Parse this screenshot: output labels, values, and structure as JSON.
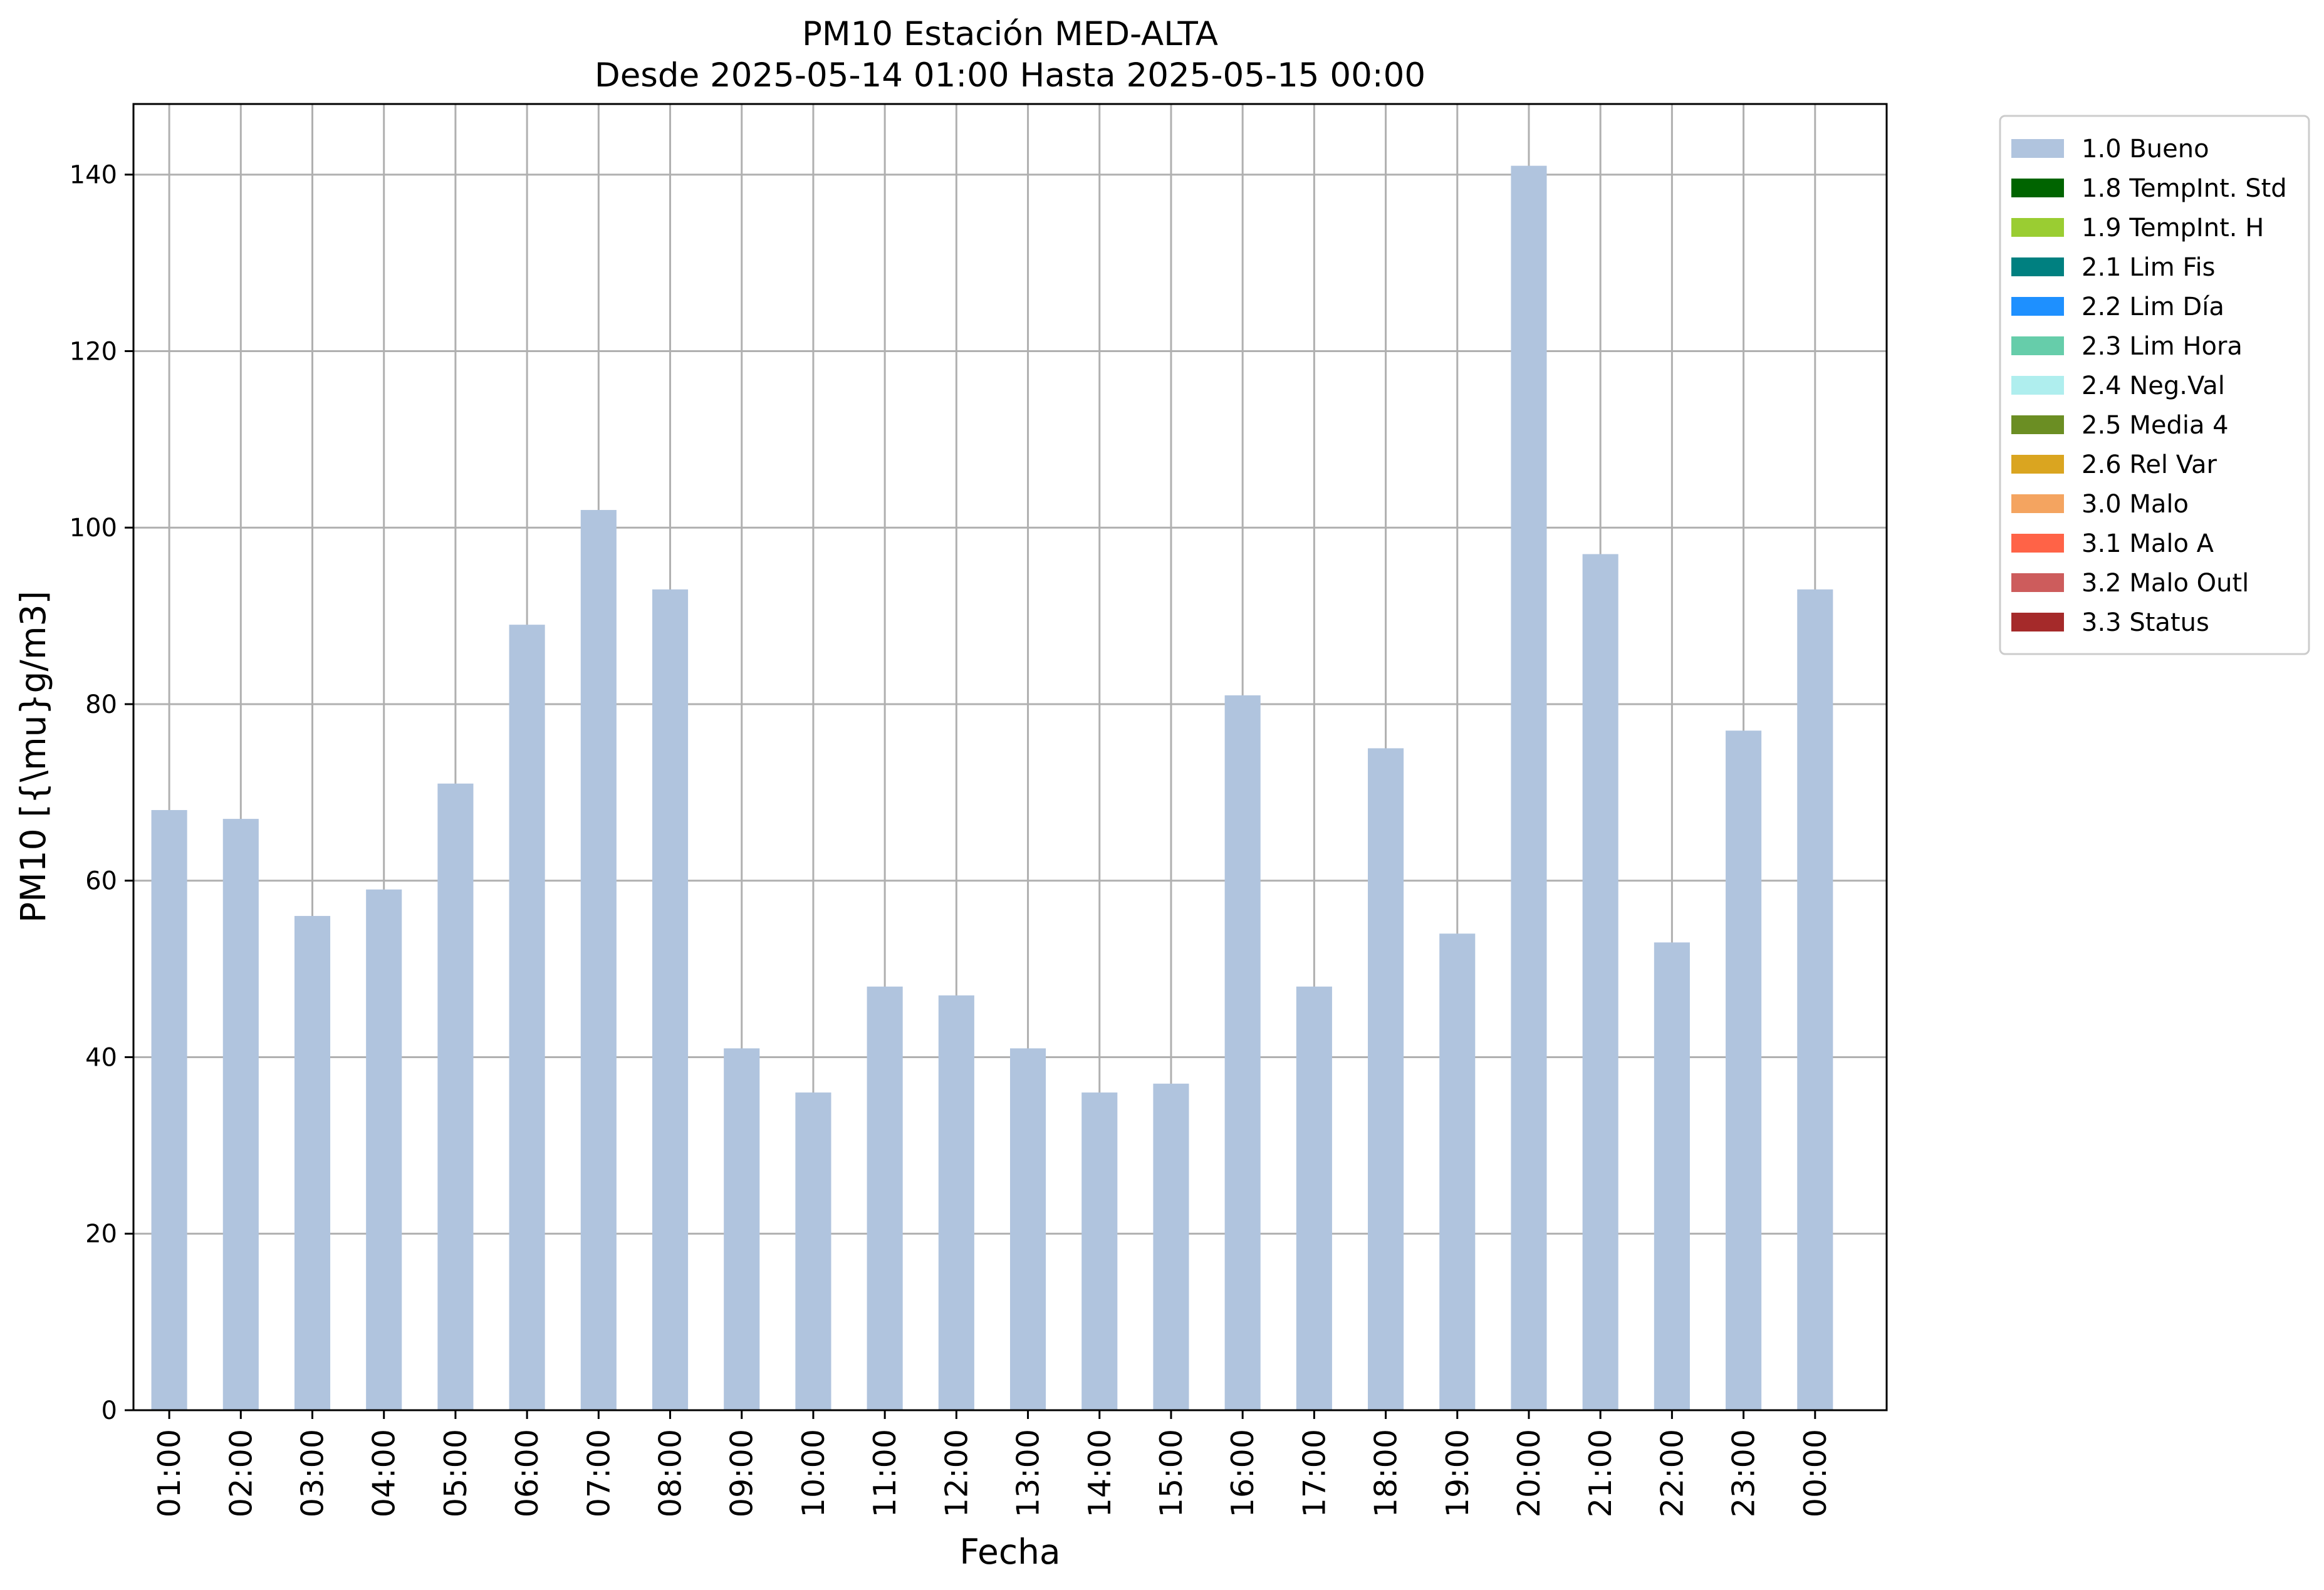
{
  "chart_data": {
    "type": "bar",
    "title": "PM10 Estación MED-ALTA",
    "subtitle": "Desde 2025-05-14 01:00 Hasta 2025-05-15 00:00",
    "xlabel": "Fecha",
    "ylabel": "PM10 [{\\mu}g/m3]",
    "ylim": [
      0,
      148
    ],
    "yticks": [
      0,
      20,
      40,
      60,
      80,
      100,
      120,
      140
    ],
    "grid": true,
    "legend_position": "outside-top-right",
    "categories": [
      "01:00",
      "02:00",
      "03:00",
      "04:00",
      "05:00",
      "06:00",
      "07:00",
      "08:00",
      "09:00",
      "10:00",
      "11:00",
      "12:00",
      "13:00",
      "14:00",
      "15:00",
      "16:00",
      "17:00",
      "18:00",
      "19:00",
      "20:00",
      "21:00",
      "22:00",
      "23:00",
      "00:00"
    ],
    "series": [
      {
        "name": "1.0 Bueno",
        "color": "#b0c4de",
        "values": [
          68,
          67,
          56,
          59,
          71,
          89,
          102,
          93,
          41,
          36,
          48,
          47,
          41,
          36,
          37,
          81,
          48,
          75,
          54,
          141,
          97,
          53,
          77,
          93
        ]
      }
    ],
    "legend": [
      {
        "label": "1.0 Bueno",
        "color": "#b0c4de"
      },
      {
        "label": "1.8 TempInt. Std",
        "color": "#006400"
      },
      {
        "label": "1.9 TempInt. H",
        "color": "#9acd32"
      },
      {
        "label": "2.1 Lim Fis",
        "color": "#008080"
      },
      {
        "label": "2.2 Lim Día",
        "color": "#1e90ff"
      },
      {
        "label": "2.3 Lim Hora",
        "color": "#66cdaa"
      },
      {
        "label": "2.4 Neg.Val",
        "color": "#afeeee"
      },
      {
        "label": "2.5 Media 4",
        "color": "#6b8e23"
      },
      {
        "label": "2.6 Rel Var",
        "color": "#daa520"
      },
      {
        "label": "3.0 Malo",
        "color": "#f4a460"
      },
      {
        "label": "3.1 Malo A",
        "color": "#ff6347"
      },
      {
        "label": "3.2 Malo Outl",
        "color": "#cd5c5c"
      },
      {
        "label": "3.3 Status",
        "color": "#a52a2a"
      }
    ]
  }
}
